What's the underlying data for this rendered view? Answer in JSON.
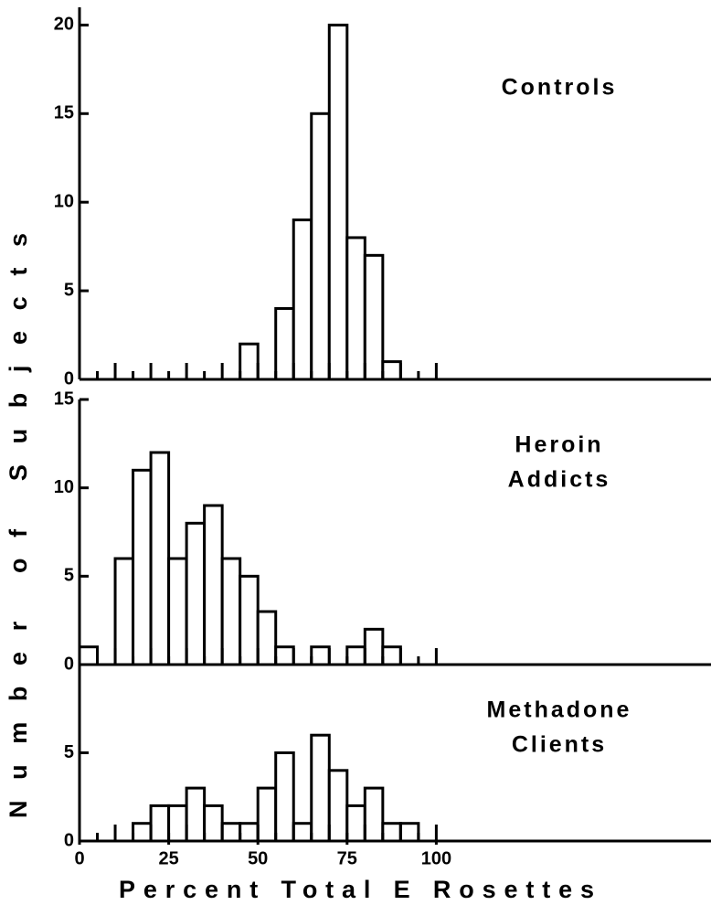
{
  "xlabel": "Percent Total E Rosettes",
  "ylabel": "Number of Subjects",
  "chart_data": [
    {
      "type": "histogram",
      "label": [
        "Controls"
      ],
      "bins": [
        0,
        5,
        10,
        15,
        20,
        25,
        30,
        35,
        40,
        45,
        50,
        55,
        60,
        65,
        70,
        75,
        80,
        85,
        90,
        95,
        100
      ],
      "values": [
        0,
        0,
        0,
        0,
        0,
        0,
        0,
        0,
        0,
        2,
        0,
        4,
        9,
        15,
        20,
        8,
        7,
        1,
        0,
        0
      ],
      "xlim": [
        0,
        177
      ],
      "ylim": [
        0,
        21
      ],
      "yticks": [
        0,
        5,
        10,
        15,
        20
      ]
    },
    {
      "type": "histogram",
      "label": [
        "Heroin",
        "Addicts"
      ],
      "bins": [
        0,
        5,
        10,
        15,
        20,
        25,
        30,
        35,
        40,
        45,
        50,
        55,
        60,
        65,
        70,
        75,
        80,
        85,
        90,
        95,
        100
      ],
      "values": [
        1,
        0,
        6,
        11,
        12,
        6,
        8,
        9,
        6,
        5,
        3,
        1,
        0,
        1,
        0,
        1,
        2,
        1,
        0,
        0
      ],
      "xlim": [
        0,
        177
      ],
      "ylim": [
        0,
        15
      ],
      "yticks": [
        0,
        5,
        10,
        15
      ]
    },
    {
      "type": "histogram",
      "label": [
        "Methadone",
        "Clients"
      ],
      "bins": [
        0,
        5,
        10,
        15,
        20,
        25,
        30,
        35,
        40,
        45,
        50,
        55,
        60,
        65,
        70,
        75,
        80,
        85,
        90,
        95,
        100
      ],
      "values": [
        0,
        0,
        0,
        1,
        2,
        2,
        3,
        2,
        1,
        1,
        3,
        5,
        1,
        6,
        4,
        2,
        3,
        1,
        1,
        0
      ],
      "xlim": [
        0,
        177
      ],
      "ylim": [
        0,
        10
      ],
      "yticks": [
        0,
        5
      ],
      "xticks": [
        0,
        25,
        50,
        75,
        100
      ]
    }
  ]
}
